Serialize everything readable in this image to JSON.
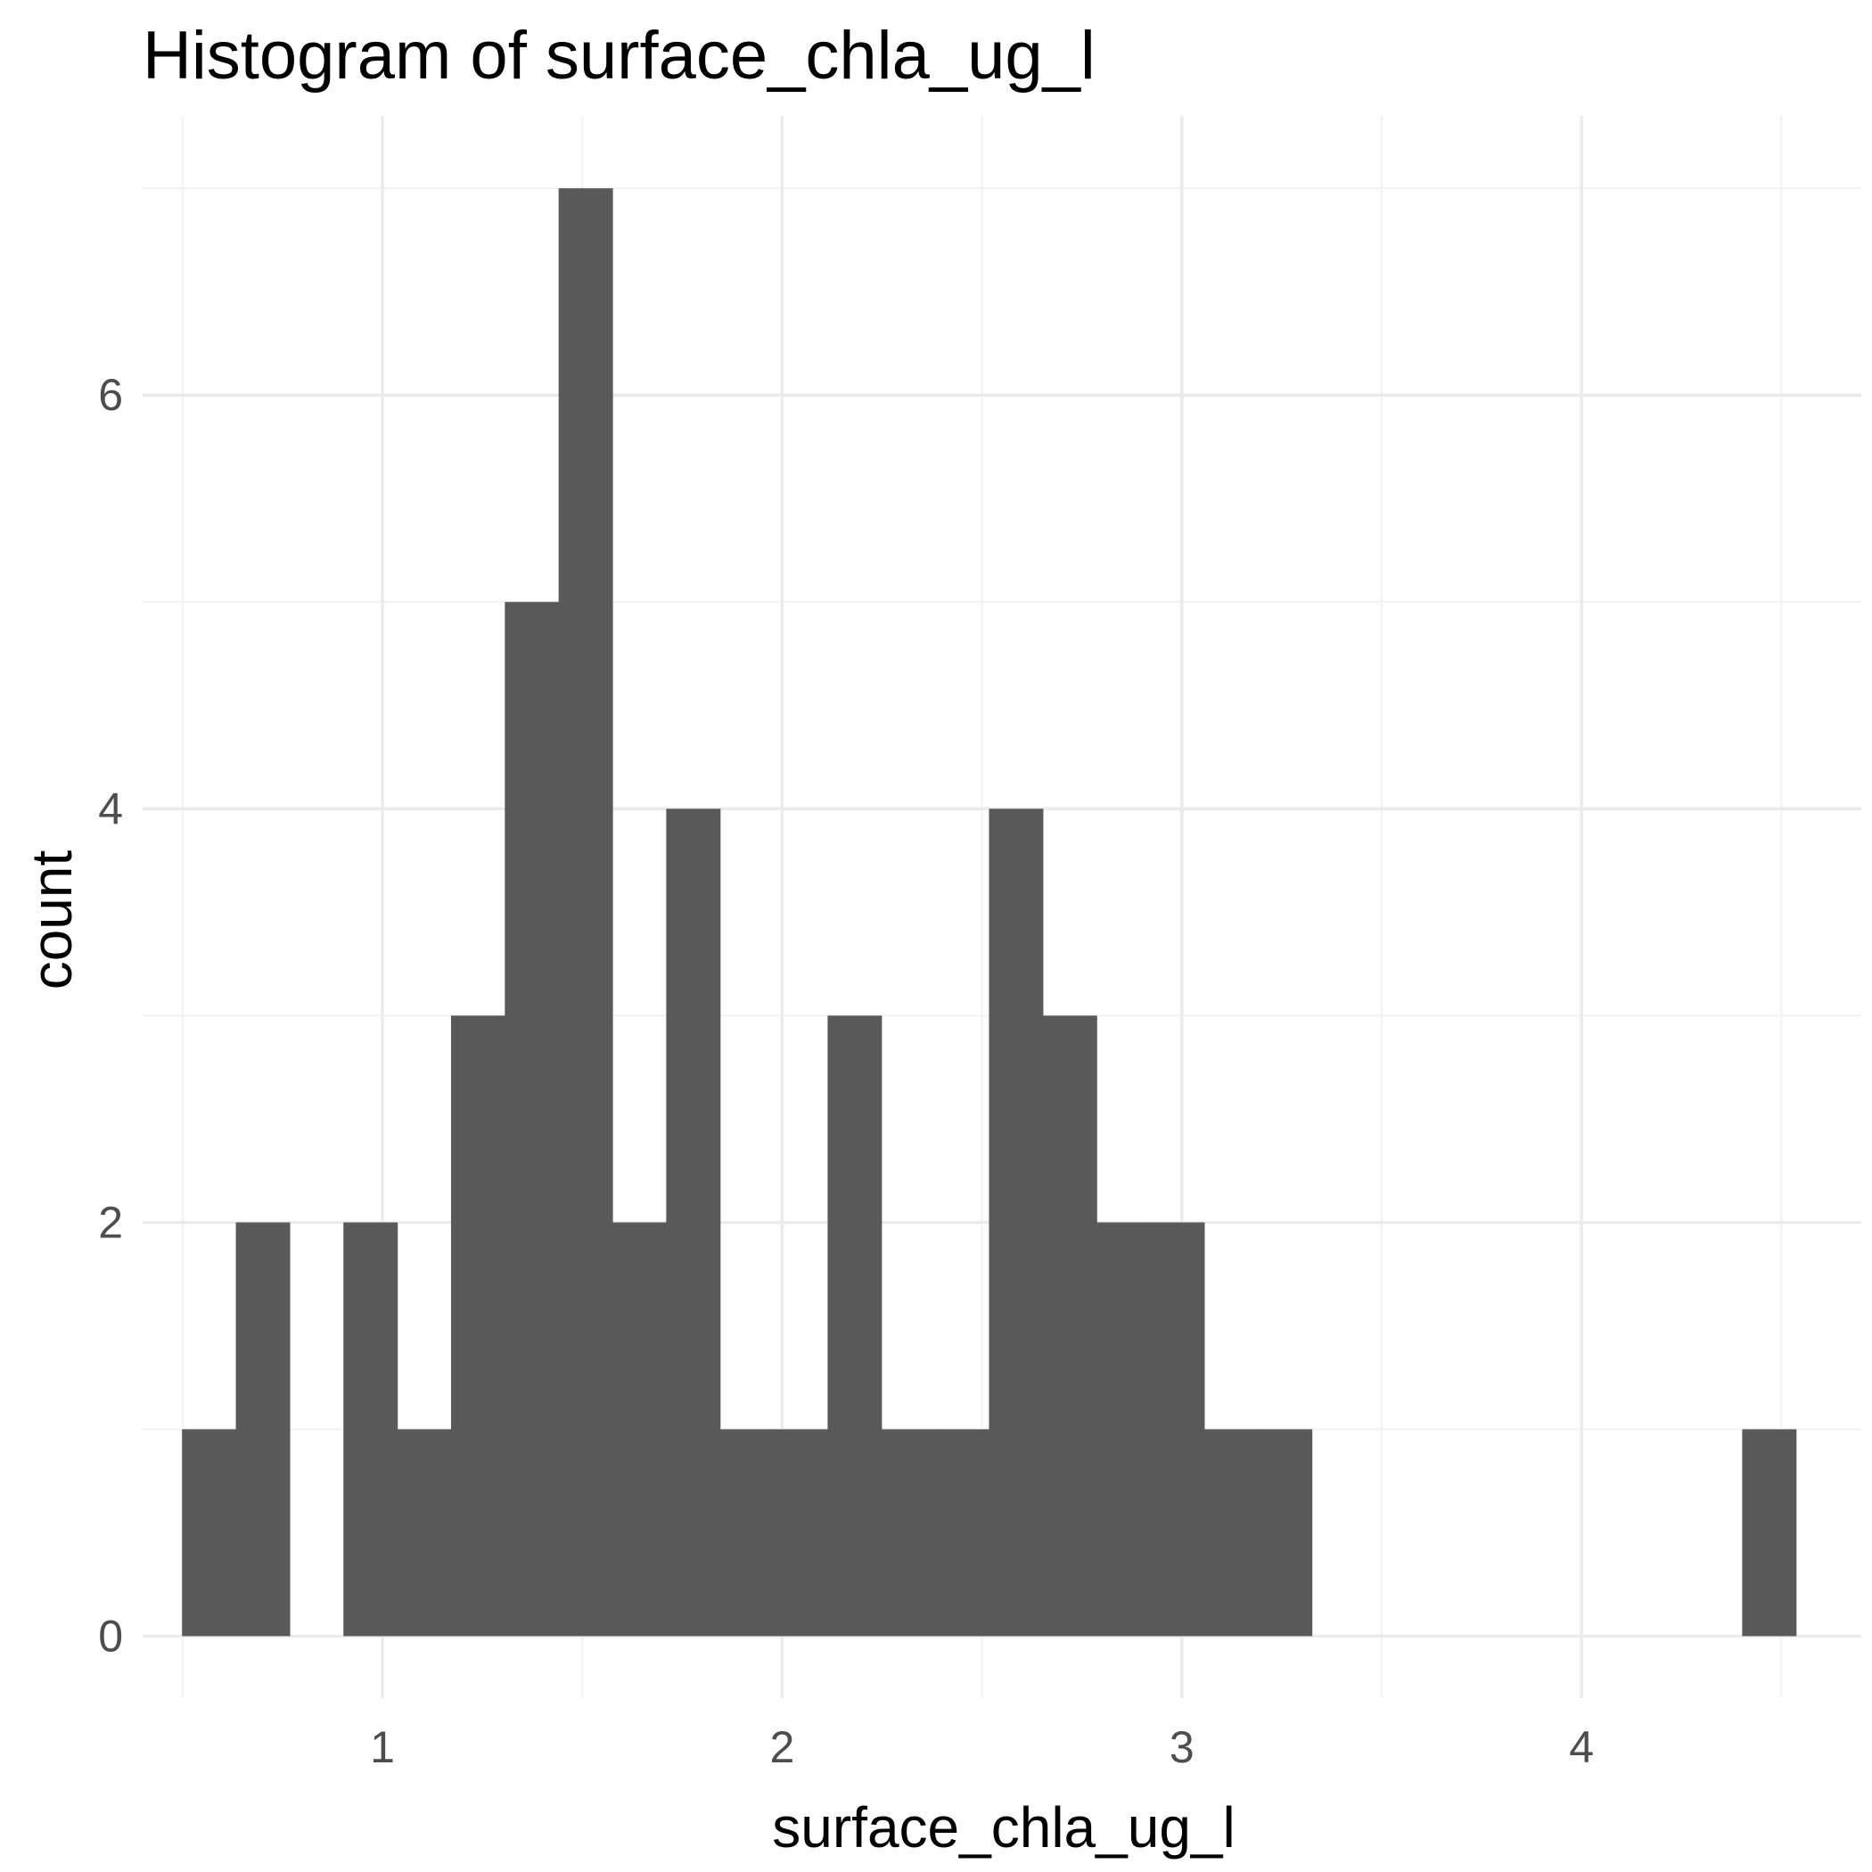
{
  "chart_data": {
    "type": "bar",
    "title": "Histogram of  surface_chla_ug_l",
    "xlabel": "surface_chla_ug_l",
    "ylabel": "count",
    "xlim": [
      0.4,
      4.7
    ],
    "ylim": [
      -0.3,
      7.35
    ],
    "x_ticks": [
      1,
      2,
      3,
      4
    ],
    "x_tick_labels": [
      "1",
      "2",
      "3",
      "4"
    ],
    "y_ticks": [
      0,
      2,
      4,
      6
    ],
    "y_tick_labels": [
      "0",
      "2",
      "4",
      "6"
    ],
    "minor_x": [
      0.5,
      1.5,
      2.5,
      3.5,
      4.5
    ],
    "minor_y": [
      1,
      3,
      5,
      7
    ],
    "grid": true,
    "bin_width": 0.1346,
    "bins": [
      {
        "x0": 0.4986,
        "x1": 0.6332,
        "count": 1
      },
      {
        "x0": 0.6332,
        "x1": 0.7678,
        "count": 2
      },
      {
        "x0": 0.7678,
        "x1": 0.9024,
        "count": 0
      },
      {
        "x0": 0.9024,
        "x1": 1.037,
        "count": 2
      },
      {
        "x0": 1.037,
        "x1": 1.1716,
        "count": 1
      },
      {
        "x0": 1.1716,
        "x1": 1.3062,
        "count": 3
      },
      {
        "x0": 1.3062,
        "x1": 1.4408,
        "count": 5
      },
      {
        "x0": 1.4408,
        "x1": 1.5754,
        "count": 7
      },
      {
        "x0": 1.5754,
        "x1": 1.71,
        "count": 2
      },
      {
        "x0": 1.71,
        "x1": 1.8446,
        "count": 4
      },
      {
        "x0": 1.8446,
        "x1": 1.9792,
        "count": 1
      },
      {
        "x0": 1.9792,
        "x1": 2.1138,
        "count": 1
      },
      {
        "x0": 2.1138,
        "x1": 2.2484,
        "count": 3
      },
      {
        "x0": 2.2484,
        "x1": 2.383,
        "count": 1
      },
      {
        "x0": 2.383,
        "x1": 2.5176,
        "count": 1
      },
      {
        "x0": 2.5176,
        "x1": 2.6522,
        "count": 4
      },
      {
        "x0": 2.6522,
        "x1": 2.7868,
        "count": 3
      },
      {
        "x0": 2.7868,
        "x1": 2.9214,
        "count": 2
      },
      {
        "x0": 2.9214,
        "x1": 3.056,
        "count": 2
      },
      {
        "x0": 3.056,
        "x1": 3.1906,
        "count": 1
      },
      {
        "x0": 3.1906,
        "x1": 3.3252,
        "count": 1
      },
      {
        "x0": 3.3252,
        "x1": 3.4598,
        "count": 0
      },
      {
        "x0": 3.4598,
        "x1": 3.5944,
        "count": 0
      },
      {
        "x0": 3.5944,
        "x1": 3.729,
        "count": 0
      },
      {
        "x0": 3.729,
        "x1": 3.8636,
        "count": 0
      },
      {
        "x0": 3.8636,
        "x1": 3.9982,
        "count": 0
      },
      {
        "x0": 3.9982,
        "x1": 4.1328,
        "count": 0
      },
      {
        "x0": 4.1328,
        "x1": 4.2674,
        "count": 0
      },
      {
        "x0": 4.2674,
        "x1": 4.402,
        "count": 0
      },
      {
        "x0": 4.402,
        "x1": 4.5366,
        "count": 1
      }
    ],
    "bar_color": "#595959",
    "grid_major_color": "#ebebeb",
    "grid_minor_color": "#f2f2f2",
    "background": "#ffffff"
  }
}
